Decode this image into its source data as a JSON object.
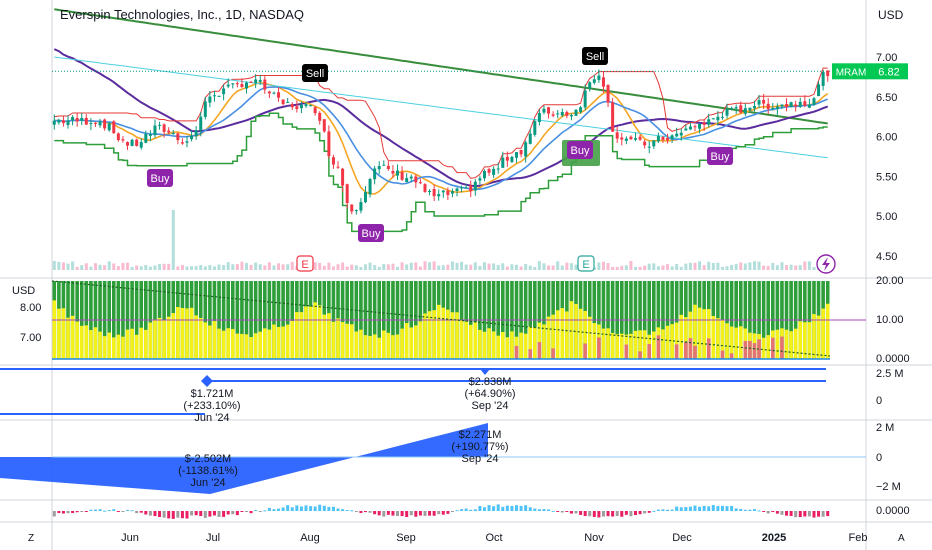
{
  "header": {
    "title": "Everspin Technologies, Inc., 1D, NASDAQ",
    "currency": "USD"
  },
  "colors": {
    "up": "#089981",
    "down": "#f23645",
    "upFlat": "#26a69a",
    "ma_green": "#388e3c",
    "ma_purple": "#5b2c9e",
    "ma_orange": "#f5a623",
    "ma_blue": "#4a90e2",
    "ma_red": "#e53935",
    "ma_teal": "#4dd0e1",
    "stop_green": "#2e9e3a",
    "buy_badge": "#8e24aa",
    "sell_badge": "#000000",
    "ticker_badge": "#00c853"
  },
  "ticker": {
    "symbol": "MRAM",
    "price": "6.82"
  },
  "chart_data": {
    "type": "candlestick",
    "price_axis": {
      "ticks": [
        "7.00",
        "6.50",
        "6.00",
        "5.50",
        "5.00",
        "4.50"
      ],
      "range": [
        4.45,
        7.5
      ]
    },
    "time_axis": {
      "ticks": [
        "Jun",
        "Jul",
        "Aug",
        "Sep",
        "Oct",
        "Nov",
        "Dec",
        "2025",
        "Feb"
      ]
    },
    "last_price": 6.82,
    "signals": [
      {
        "label": "Buy",
        "date": "Jun '24",
        "price": 5.6
      },
      {
        "label": "Sell",
        "date": "Aug '24",
        "price": 6.7
      },
      {
        "label": "Buy",
        "date": "Aug '24",
        "price": 4.95
      },
      {
        "label": "Sell",
        "date": "Oct '24",
        "price": 6.95
      },
      {
        "label": "Buy",
        "date": "Oct '24",
        "price": 5.95
      },
      {
        "label": "Buy",
        "date": "Dec '24",
        "price": 5.9
      }
    ],
    "earnings_markers": [
      "E",
      "E"
    ],
    "osc_panel": {
      "left_ticks": [
        "8.00",
        "7.00"
      ],
      "right_ticks": [
        "20.00",
        "10.00",
        "0.0000"
      ],
      "currency": "USD"
    },
    "fund_panel_1": {
      "right_ticks": [
        "2.5 M",
        "0"
      ],
      "labels": [
        {
          "value": "$1.721M",
          "change": "(+233.10%)",
          "period": "Jun '24"
        },
        {
          "value": "$2.838M",
          "change": "(+64.90%)",
          "period": "Sep '24"
        }
      ]
    },
    "fund_panel_2": {
      "right_ticks": [
        "2 M",
        "0",
        "−2 M"
      ],
      "labels": [
        {
          "value": "$-2.502M",
          "change": "(-1138.61%)",
          "period": "Jun '24"
        },
        {
          "value": "$2.271M",
          "change": "(+190.77%)",
          "period": "Sep '24"
        }
      ]
    },
    "hist_panel": {
      "right_ticks": [
        "0.0000"
      ]
    }
  },
  "footer": {
    "left": "Z",
    "right": "A"
  }
}
